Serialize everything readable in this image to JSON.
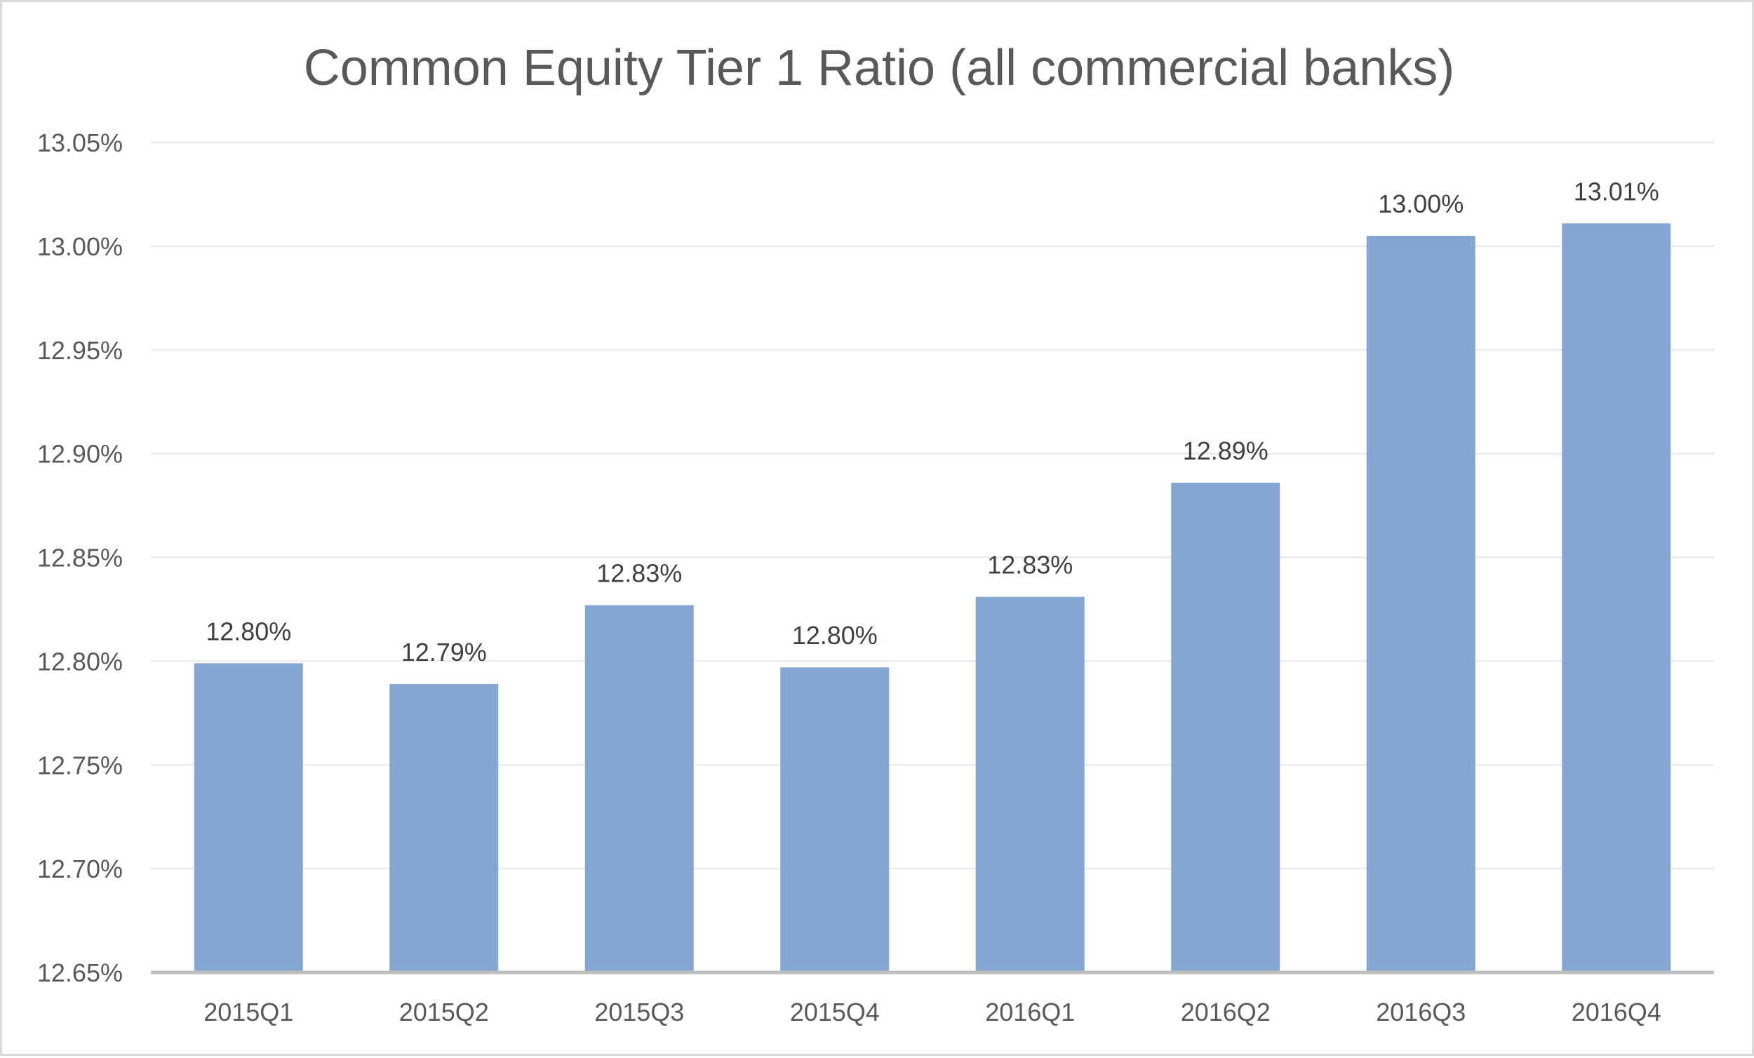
{
  "chart_data": {
    "type": "bar",
    "title": "Common Equity Tier 1 Ratio (all commercial banks)",
    "xlabel": "",
    "ylabel": "",
    "categories": [
      "2015Q1",
      "2015Q2",
      "2015Q3",
      "2015Q4",
      "2016Q1",
      "2016Q2",
      "2016Q3",
      "2016Q4"
    ],
    "values": [
      12.799,
      12.789,
      12.827,
      12.797,
      12.831,
      12.886,
      13.005,
      13.011
    ],
    "data_labels": [
      "12.80%",
      "12.79%",
      "12.83%",
      "12.80%",
      "12.83%",
      "12.89%",
      "13.00%",
      "13.01%"
    ],
    "ylim": [
      12.65,
      13.05
    ],
    "yticks": [
      12.65,
      12.7,
      12.75,
      12.8,
      12.85,
      12.9,
      12.95,
      13.0,
      13.05
    ],
    "ytick_labels": [
      "12.65%",
      "12.70%",
      "12.75%",
      "12.80%",
      "12.85%",
      "12.90%",
      "12.95%",
      "13.00%",
      "13.05%"
    ],
    "grid": true,
    "legend": "none",
    "colors": {
      "bar": "#84a7d1",
      "grid": "#ececec",
      "axis": "#bfbfbf",
      "text": "#595959"
    }
  }
}
